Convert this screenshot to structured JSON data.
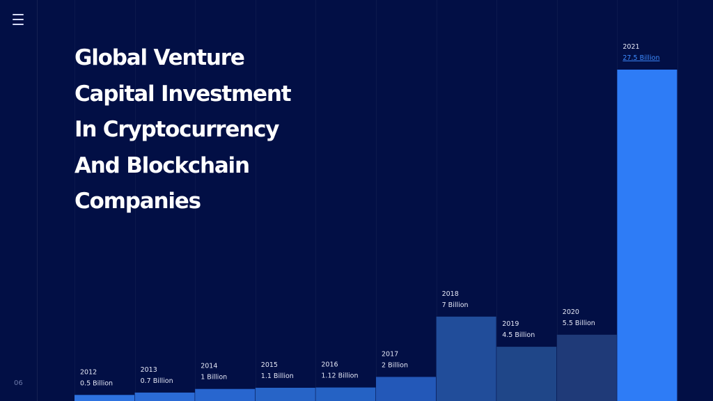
{
  "page_number": "06",
  "menu_icon": "hamburger-menu-icon",
  "colors": {
    "background": "#020f45",
    "highlight_bar": "#2e7cf6",
    "highlight_label": "#3d8bff"
  },
  "chart_data": {
    "type": "bar",
    "title": "Global Venture Capital Investment In Cryptocurrency And Blockchain Companies",
    "title_lines": [
      "Global Venture",
      "Capital Investment",
      "In Cryptocurrency",
      "And Blockchain",
      "Companies"
    ],
    "categories": [
      "2012",
      "2013",
      "2014",
      "2015",
      "2016",
      "2017",
      "2018",
      "2019",
      "2020",
      "2021"
    ],
    "values": [
      0.5,
      0.7,
      1,
      1.1,
      1.12,
      2,
      7,
      4.5,
      5.5,
      27.5
    ],
    "value_labels": [
      "0.5 Billion",
      "0.7 Billion",
      "1 Billion",
      "1.1 Billion",
      "1.12 Billion",
      "2 Billion",
      "7 Billion",
      "4.5 Billion",
      "5.5 Billion",
      "27.5 Billion"
    ],
    "unit": "Billion",
    "bar_colors": [
      "#2e73e0",
      "#2b6bd6",
      "#2866cf",
      "#2764c7",
      "#2562c4",
      "#2358b8",
      "#214d9a",
      "#1f4688",
      "#1f3a78",
      "#2e7cf6"
    ],
    "highlight_index": 9,
    "xlabel": "",
    "ylabel": "",
    "ylim": [
      0,
      27.5
    ],
    "grid": false,
    "legend": "none"
  }
}
